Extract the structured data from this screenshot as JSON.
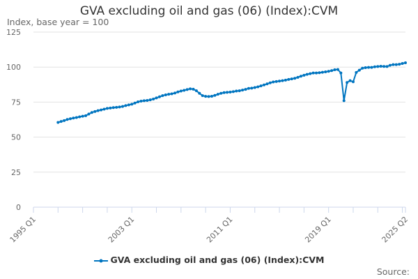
{
  "chart_data": {
    "type": "line",
    "title": "GVA excluding oil and gas (06) (Index):CVM",
    "ylabel": "Index, base year = 100",
    "xlabel": "",
    "source_label": "Source:",
    "ylim": [
      0,
      125
    ],
    "yticks": [
      0,
      25,
      50,
      75,
      100,
      125
    ],
    "xrange": [
      "1995 Q1",
      "2025 Q2"
    ],
    "xtick_labels": [
      "1995 Q1",
      "2003 Q1",
      "2011 Q1",
      "2019 Q1",
      "2025 Q2"
    ],
    "grid": true,
    "legend_position": "bottom",
    "color": "#0075c0",
    "series": [
      {
        "name": "GVA excluding oil and gas (06) (Index):CVM",
        "start": "1997 Q1",
        "values": [
          60.5,
          61.2,
          61.8,
          62.6,
          63.1,
          63.6,
          64.0,
          64.5,
          64.9,
          65.3,
          66.5,
          67.6,
          68.3,
          68.9,
          69.4,
          70.0,
          70.5,
          70.8,
          71.1,
          71.3,
          71.5,
          71.9,
          72.5,
          73.0,
          73.5,
          74.3,
          75.2,
          75.7,
          76.0,
          76.2,
          76.6,
          77.2,
          78.0,
          78.8,
          79.6,
          80.2,
          80.6,
          80.9,
          81.5,
          82.3,
          82.9,
          83.4,
          84.0,
          84.5,
          84.2,
          83.1,
          81.3,
          79.6,
          79.1,
          79.0,
          79.2,
          79.8,
          80.6,
          81.3,
          81.8,
          82.0,
          82.2,
          82.5,
          82.9,
          83.1,
          83.6,
          84.1,
          84.8,
          85.0,
          85.4,
          85.9,
          86.6,
          87.3,
          88.0,
          88.8,
          89.4,
          89.7,
          90.0,
          90.3,
          90.7,
          91.2,
          91.6,
          92.0,
          92.7,
          93.5,
          94.2,
          94.8,
          95.3,
          95.8,
          95.8,
          96.0,
          96.3,
          96.6,
          97.0,
          97.5,
          98.1,
          98.3,
          95.8,
          76.0,
          89.0,
          90.3,
          89.5,
          96.2,
          97.8,
          99.2,
          99.6,
          99.8,
          99.8,
          100.2,
          100.4,
          100.6,
          100.5,
          100.4,
          101.3,
          101.8,
          101.8,
          102.0,
          102.6,
          103.1
        ]
      }
    ]
  }
}
